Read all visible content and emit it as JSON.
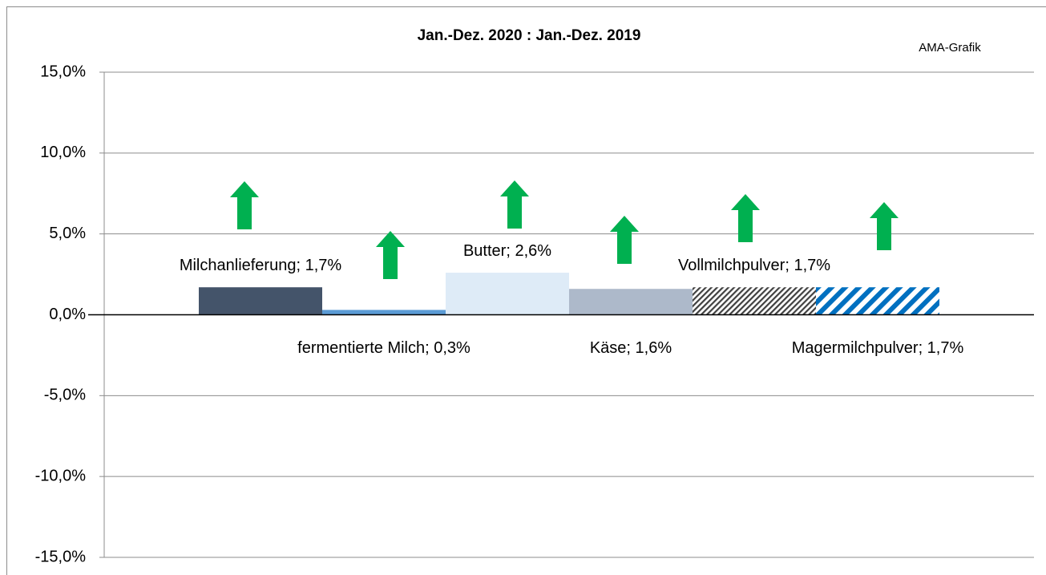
{
  "chart_data": {
    "type": "bar",
    "title": "Jan.-Dez. 2020 : Jan.-Dez. 2019",
    "annotation": "AMA-Grafik",
    "values": [
      1.7,
      0.3,
      2.6,
      1.6,
      1.7,
      1.7
    ],
    "value_labels": [
      "Milchanlieferung; 1,7%",
      "fermentierte Milch; 0,3%",
      "Butter; 2,6%",
      "Käse; 1,6%",
      "Vollmilchpulver; 1,7%",
      "Magermilchpulver; 1,7%"
    ],
    "colors": [
      "#44546a",
      "#5b9bd5",
      "#deebf7",
      "#adb9ca",
      "#404040",
      "#0070c0"
    ],
    "patterns": [
      null,
      null,
      null,
      null,
      "fine-hatch",
      "wide-stripe"
    ],
    "ylim": [
      -15,
      15
    ],
    "yticks": [
      {
        "value": -15,
        "label": "-15,0%"
      },
      {
        "value": -10,
        "label": "-10,0%"
      },
      {
        "value": -5,
        "label": "-5,0%"
      },
      {
        "value": 0,
        "label": "0,0%"
      },
      {
        "value": 5,
        "label": "5,0%"
      },
      {
        "value": 10,
        "label": "10,0%"
      },
      {
        "value": 15,
        "label": "15,0%"
      }
    ],
    "grid": true
  }
}
